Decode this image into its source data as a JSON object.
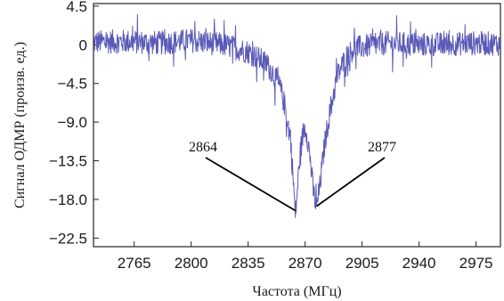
{
  "chart_data": {
    "type": "line",
    "title": "",
    "xlabel": "Частота (МГц)",
    "ylabel": "Сигнал ОДМР (произв. ед.)",
    "xlim": [
      2740,
      2990
    ],
    "ylim": [
      -23.5,
      4.8
    ],
    "xticks": [
      2765,
      2800,
      2835,
      2870,
      2905,
      2940,
      2975
    ],
    "xtick_labels": [
      "2765",
      "2800",
      "2835",
      "2870",
      "2905",
      "2940",
      "2975"
    ],
    "yticks": [
      4.5,
      0,
      -4.5,
      -9.0,
      -13.5,
      -18.0,
      -22.5
    ],
    "ytick_labels": [
      "4.5",
      "0",
      "−4.5",
      "−9.0",
      "−13.5",
      "−18.0",
      "−22.5"
    ],
    "grid": false,
    "series": [
      {
        "color": "#5a5ab8",
        "x": [
          2740,
          2760,
          2780,
          2800,
          2820,
          2835,
          2845,
          2850,
          2855,
          2858,
          2861,
          2863,
          2864,
          2865,
          2867,
          2869,
          2870,
          2871,
          2873,
          2875,
          2877,
          2879,
          2882,
          2886,
          2890,
          2895,
          2900,
          2920,
          2940,
          2960,
          2975,
          2990
        ],
        "y": [
          0.3,
          0.4,
          0.2,
          0.5,
          0.0,
          -0.8,
          -2.0,
          -3.2,
          -5.2,
          -7.5,
          -11.0,
          -16.5,
          -20.0,
          -17.5,
          -12.5,
          -10.0,
          -9.6,
          -10.2,
          -13.0,
          -17.0,
          -19.0,
          -16.5,
          -11.5,
          -7.0,
          -3.5,
          -1.5,
          -0.4,
          0.2,
          0.0,
          0.1,
          0.2,
          0.1
        ],
        "noise_amplitude": 1.4
      }
    ],
    "annotations": [
      {
        "text": "2864",
        "x": 2864,
        "y": -19.3
      },
      {
        "text": "2877",
        "x": 2877,
        "y": -18.8
      }
    ]
  }
}
